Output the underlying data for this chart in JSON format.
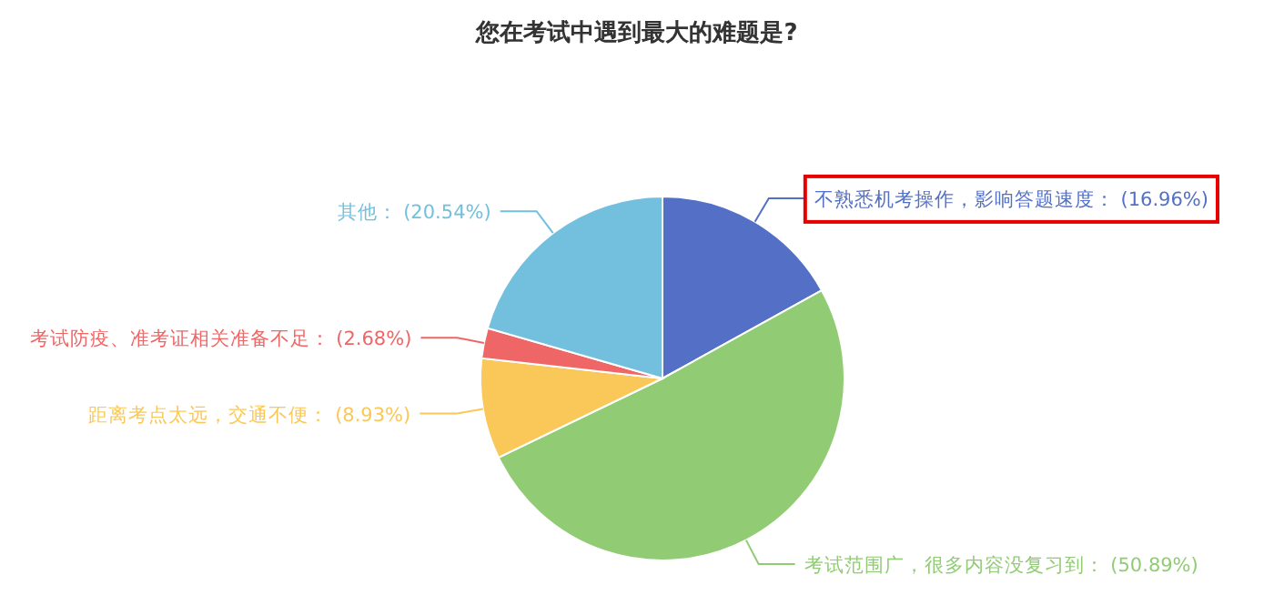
{
  "chart_data": {
    "type": "pie",
    "title": "您在考试中遇到最大的难题是?",
    "categories": [
      "不熟悉机考操作，影响答题速度",
      "考试范围广，很多内容没复习到",
      "距离考点太远，交通不便",
      "考试防疫、准考证相关准备不足",
      "其他"
    ],
    "values": [
      16.96,
      50.89,
      8.93,
      2.68,
      20.54
    ],
    "value_labels": [
      "(16.96%)",
      "(50.89%)",
      "(8.93%)",
      "(2.68%)",
      "(20.54%)"
    ],
    "colors": [
      "#5470c6",
      "#91cc75",
      "#fac858",
      "#ee6666",
      "#73c0de"
    ]
  }
}
